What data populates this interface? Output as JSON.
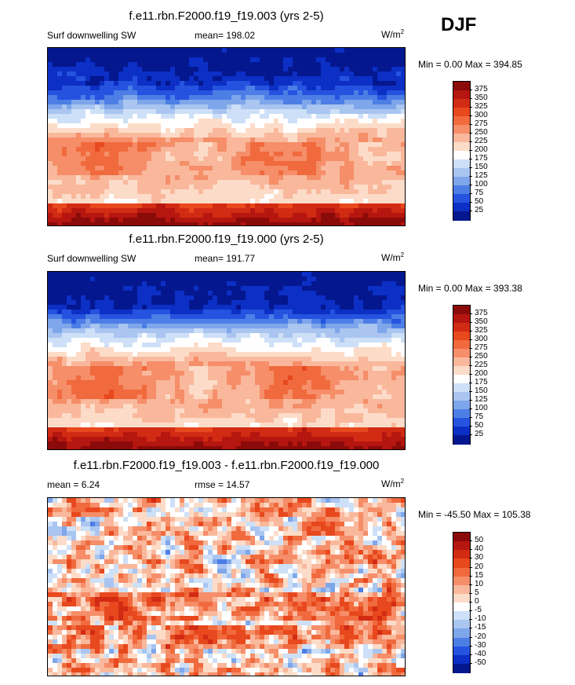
{
  "season": "DJF",
  "panels": [
    {
      "title": "f.e11.rbn.F2000.f19_f19.003 (yrs 2-5)",
      "left_label": "Surf downwelling SW",
      "center_label": "mean= 198.02",
      "unit_base": "W/m",
      "unit_sup": "2",
      "minmax": "Min =   0.00 Max = 394.85"
    },
    {
      "title": "f.e11.rbn.F2000.f19_f19.000 (yrs 2-5)",
      "left_label": "Surf downwelling SW",
      "center_label": "mean= 191.77",
      "unit_base": "W/m",
      "unit_sup": "2",
      "minmax": "Min =   0.00 Max = 393.38"
    },
    {
      "title": "f.e11.rbn.F2000.f19_f19.003 - f.e11.rbn.F2000.f19_f19.000",
      "left_label": "mean =   6.24",
      "center_label": "rmse =   14.57",
      "unit_base": "W/m",
      "unit_sup": "2",
      "minmax": "Min = -45.50 Max = 105.38"
    }
  ],
  "chart_data": [
    {
      "type": "heatmap",
      "title": "f.e11.rbn.F2000.f19_f19.003 (yrs 2-5)",
      "variable": "Surf downwelling SW",
      "units": "W/m2",
      "mean": 198.02,
      "min": 0.0,
      "max": 394.85,
      "colorbar_levels": [
        375,
        350,
        325,
        300,
        275,
        250,
        225,
        200,
        175,
        150,
        125,
        100,
        75,
        50,
        25
      ],
      "colorbar_colors": [
        "#8b0a0a",
        "#b5160f",
        "#d22b14",
        "#e8481d",
        "#f06a3d",
        "#f58e69",
        "#f9b89c",
        "#fcdcc8",
        "#ffffff",
        "#cde0f7",
        "#a9c5f0",
        "#7ea6ea",
        "#4d7ee6",
        "#2553e0",
        "#0c2fc5",
        "#04178f"
      ],
      "lat_range": [
        -90,
        90
      ],
      "lon_range": [
        30,
        390
      ]
    },
    {
      "type": "heatmap",
      "title": "f.e11.rbn.F2000.f19_f19.000 (yrs 2-5)",
      "variable": "Surf downwelling SW",
      "units": "W/m2",
      "mean": 191.77,
      "min": 0.0,
      "max": 393.38,
      "colorbar_levels": [
        375,
        350,
        325,
        300,
        275,
        250,
        225,
        200,
        175,
        150,
        125,
        100,
        75,
        50,
        25
      ],
      "colorbar_colors": [
        "#8b0a0a",
        "#b5160f",
        "#d22b14",
        "#e8481d",
        "#f06a3d",
        "#f58e69",
        "#f9b89c",
        "#fcdcc8",
        "#ffffff",
        "#cde0f7",
        "#a9c5f0",
        "#7ea6ea",
        "#4d7ee6",
        "#2553e0",
        "#0c2fc5",
        "#04178f"
      ],
      "lat_range": [
        -90,
        90
      ],
      "lon_range": [
        30,
        390
      ]
    },
    {
      "type": "heatmap",
      "title": "f.e11.rbn.F2000.f19_f19.003 - f.e11.rbn.F2000.f19_f19.000",
      "units": "W/m2",
      "mean": 6.24,
      "rmse": 14.57,
      "min": -45.5,
      "max": 105.38,
      "colorbar_levels": [
        50,
        40,
        30,
        20,
        15,
        10,
        5,
        0,
        -5,
        -10,
        -15,
        -20,
        -30,
        -40,
        -50
      ],
      "colorbar_colors": [
        "#8b0a0a",
        "#b5160f",
        "#d22b14",
        "#e8481d",
        "#f06a3d",
        "#f58e69",
        "#f9b89c",
        "#fcdcc8",
        "#ffffff",
        "#cde0f7",
        "#a9c5f0",
        "#7ea6ea",
        "#4d7ee6",
        "#2553e0",
        "#0c2fc5",
        "#04178f"
      ],
      "lat_range": [
        -90,
        90
      ],
      "lon_range": [
        30,
        390
      ]
    }
  ]
}
